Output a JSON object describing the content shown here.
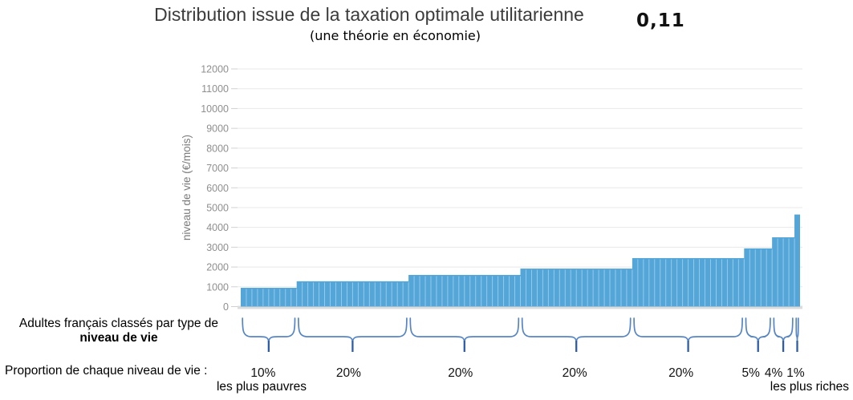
{
  "header": {
    "title": "Distribution issue de la taxation optimale utilitarienne",
    "subtitle": "(une théorie en économie)",
    "gini_value": "0,11"
  },
  "annotations": {
    "classification_line1": "Adultes français classés par type de",
    "classification_line2": "niveau de vie",
    "proportion_label": "Proportion de chaque niveau de vie :",
    "poorest_label": "les plus pauvres",
    "richest_label": "les plus riches"
  },
  "chart_data": {
    "type": "bar",
    "title": "Distribution issue de la taxation optimale utilitarienne",
    "subtitle": "(une théorie en économie)",
    "ylabel": "niveau de vie (€/mois)",
    "xlabel": "Adultes français classés par type de niveau de vie",
    "ylim": [
      0,
      12000
    ],
    "ytick_step": 1000,
    "grid": true,
    "legend": "none",
    "bar_unit_pct": 1,
    "groups": [
      {
        "label": "10%",
        "share_pct": 10,
        "value": 950,
        "note": "les plus pauvres"
      },
      {
        "label": "20%",
        "share_pct": 20,
        "value": 1280,
        "note": ""
      },
      {
        "label": "20%",
        "share_pct": 20,
        "value": 1600,
        "note": ""
      },
      {
        "label": "20%",
        "share_pct": 20,
        "value": 1920,
        "note": ""
      },
      {
        "label": "20%",
        "share_pct": 20,
        "value": 2450,
        "note": ""
      },
      {
        "label": "5%",
        "share_pct": 5,
        "value": 2940,
        "note": ""
      },
      {
        "label": "4%",
        "share_pct": 4,
        "value": 3500,
        "note": ""
      },
      {
        "label": "1%",
        "share_pct": 1,
        "value": 4650,
        "note": "les plus riches"
      }
    ],
    "colors": {
      "bar": "#55a6d8",
      "bar_separator": "#a8d4ef",
      "grid": "#e8e8e8",
      "tick": "#d0d0d0",
      "tick_label": "#8f8f8f",
      "axis_label": "#7a7a7a",
      "baseline": "#dcdcdc",
      "brace": "#5585c4",
      "brace_tail": "#2d5da8",
      "title": "#3c3c3c",
      "text": "#111111"
    }
  }
}
